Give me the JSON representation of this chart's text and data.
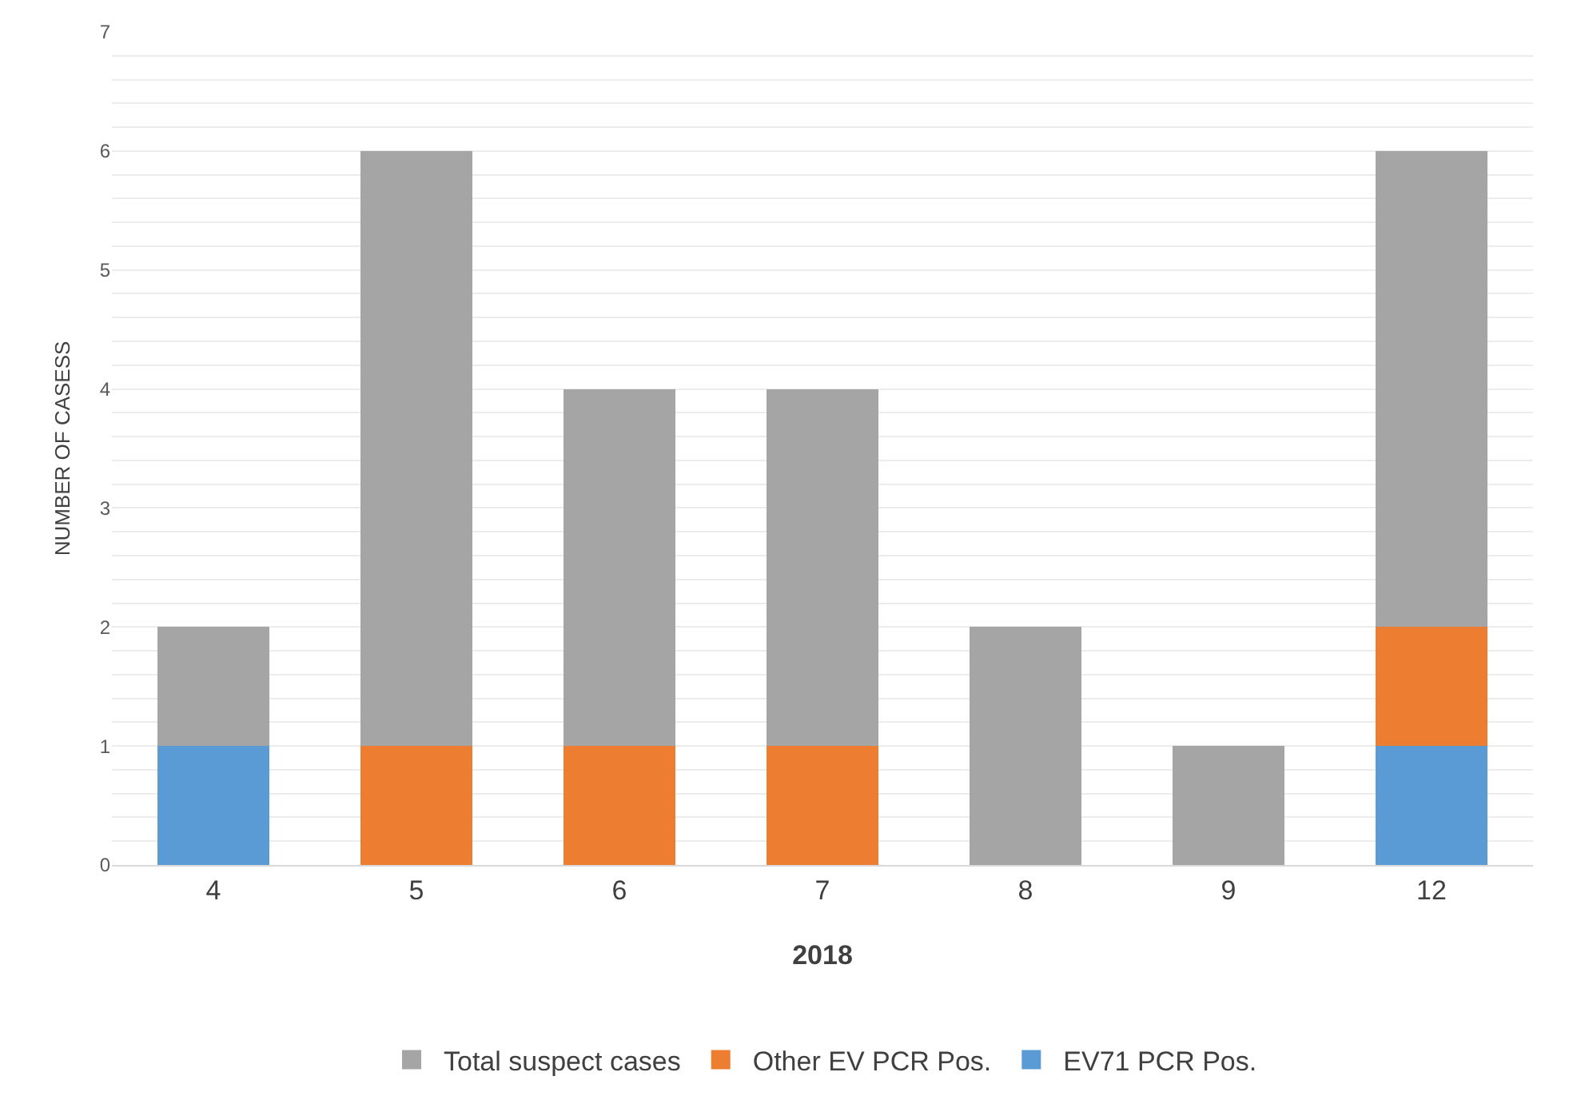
{
  "chart_data": {
    "type": "bar",
    "stacked": true,
    "xlabel": "2018",
    "ylabel": "NUMBER OF CASESS",
    "categories": [
      "4",
      "5",
      "6",
      "7",
      "8",
      "9",
      "12"
    ],
    "series": [
      {
        "name": "EV71 PCR Pos.",
        "color": "#5b9bd5",
        "values": [
          1,
          0,
          0,
          0,
          0,
          0,
          1
        ]
      },
      {
        "name": "Other EV PCR Pos.",
        "color": "#ed7d31",
        "values": [
          0,
          1,
          1,
          1,
          0,
          0,
          1
        ]
      },
      {
        "name": "Total suspect cases",
        "color": "#a5a5a5",
        "values": [
          1,
          5,
          3,
          3,
          2,
          1,
          4
        ]
      }
    ],
    "ylim": [
      0,
      7
    ],
    "yticks": [
      0,
      {
        "value": 0.2,
        "label": null
      },
      {
        "value": 0.4,
        "label": null
      },
      {
        "value": 0.6,
        "label": null
      },
      {
        "value": 0.8,
        "label": null
      },
      1,
      {
        "value": 1.2,
        "label": null
      },
      {
        "value": 1.4,
        "label": null
      },
      {
        "value": 1.6,
        "label": null
      },
      {
        "value": 1.8,
        "label": null
      },
      2,
      {
        "value": 2.2,
        "label": null
      },
      {
        "value": 2.4,
        "label": null
      },
      {
        "value": 2.6,
        "label": null
      },
      {
        "value": 2.8,
        "label": null
      },
      3,
      {
        "value": 3.2,
        "label": null
      },
      {
        "value": 3.4,
        "label": null
      },
      {
        "value": 3.6,
        "label": null
      },
      {
        "value": 3.8,
        "label": null
      },
      4,
      {
        "value": 4.2,
        "label": null
      },
      {
        "value": 4.4,
        "label": null
      },
      {
        "value": 4.6,
        "label": null
      },
      {
        "value": 4.8,
        "label": null
      },
      5,
      {
        "value": 5.2,
        "label": null
      },
      {
        "value": 5.4,
        "label": null
      },
      {
        "value": 5.6,
        "label": null
      },
      {
        "value": 5.8,
        "label": null
      },
      6,
      {
        "value": 6.2,
        "label": null
      },
      {
        "value": 6.4,
        "label": null
      },
      {
        "value": 6.6,
        "label": null
      },
      {
        "value": 6.8,
        "label": null
      },
      7
    ],
    "grid": "y",
    "legend": "bottom"
  }
}
